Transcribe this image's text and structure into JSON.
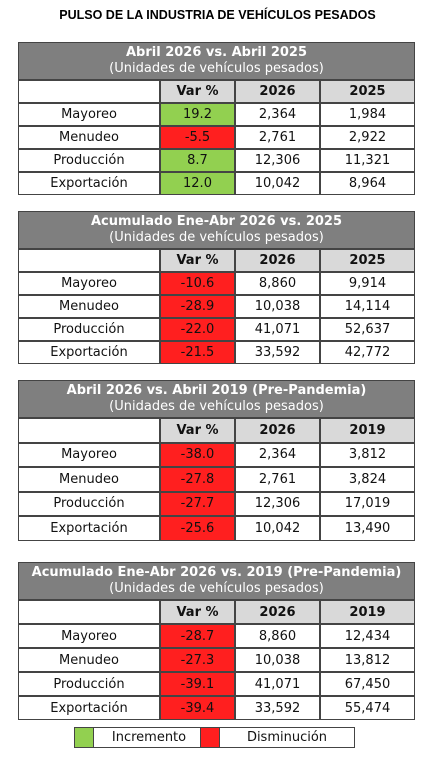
{
  "title": "PULSO DE LA INDUSTRIA DE VEHÍCULOS PESADOS",
  "tables": [
    {
      "title": "Abril 2026 vs. Abril 2025",
      "subtitle": "(Unidades de vehículos pesados)",
      "columns": [
        "Var %",
        "2026",
        "2025"
      ],
      "rows": [
        [
          "Mayoreo",
          "19.2",
          "2,364",
          "1,984"
        ],
        [
          "Menudeo",
          "-5.5",
          "2,761",
          "2,922"
        ],
        [
          "Producción",
          "8.7",
          "12,306",
          "11,321"
        ],
        [
          "Exportación",
          "12.0",
          "10,042",
          "8,964"
        ]
      ]
    },
    {
      "title": "Acumulado Ene-Abr 2026 vs. 2025",
      "subtitle": "(Unidades de vehículos pesados)",
      "columns": [
        "Var %",
        "2026",
        "2025"
      ],
      "rows": [
        [
          "Mayoreo",
          "-10.6",
          "8,860",
          "9,914"
        ],
        [
          "Menudeo",
          "-28.9",
          "10,038",
          "14,114"
        ],
        [
          "Producción",
          "-22.0",
          "41,071",
          "52,637"
        ],
        [
          "Exportación",
          "-21.5",
          "33,592",
          "42,772"
        ]
      ]
    },
    {
      "title": "Abril 2026 vs. Abril 2019 (Pre-Pandemia)",
      "subtitle": "(Unidades de vehículos pesados)",
      "columns": [
        "Var %",
        "2026",
        "2019"
      ],
      "rows": [
        [
          "Mayoreo",
          "-38.0",
          "2,364",
          "3,812"
        ],
        [
          "Menudeo",
          "-27.8",
          "2,761",
          "3,824"
        ],
        [
          "Producción",
          "-27.7",
          "12,306",
          "17,019"
        ],
        [
          "Exportación",
          "-25.6",
          "10,042",
          "13,490"
        ]
      ]
    },
    {
      "title": "Acumulado Ene-Abr 2026 vs. 2019 (Pre-Pandemia)",
      "subtitle": "(Unidades de vehículos pesados)",
      "columns": [
        "Var %",
        "2026",
        "2019"
      ],
      "rows": [
        [
          "Mayoreo",
          "-28.7",
          "8,860",
          "12,434"
        ],
        [
          "Menudeo",
          "-27.3",
          "10,038",
          "13,812"
        ],
        [
          "Producción",
          "-39.1",
          "41,071",
          "67,450"
        ],
        [
          "Exportación",
          "-39.4",
          "33,592",
          "55,474"
        ]
      ]
    }
  ],
  "legend": [
    {
      "label": "Incremento",
      "color": "#92d050"
    },
    {
      "label": "Disminución",
      "color": "#ff1f1f"
    }
  ]
}
